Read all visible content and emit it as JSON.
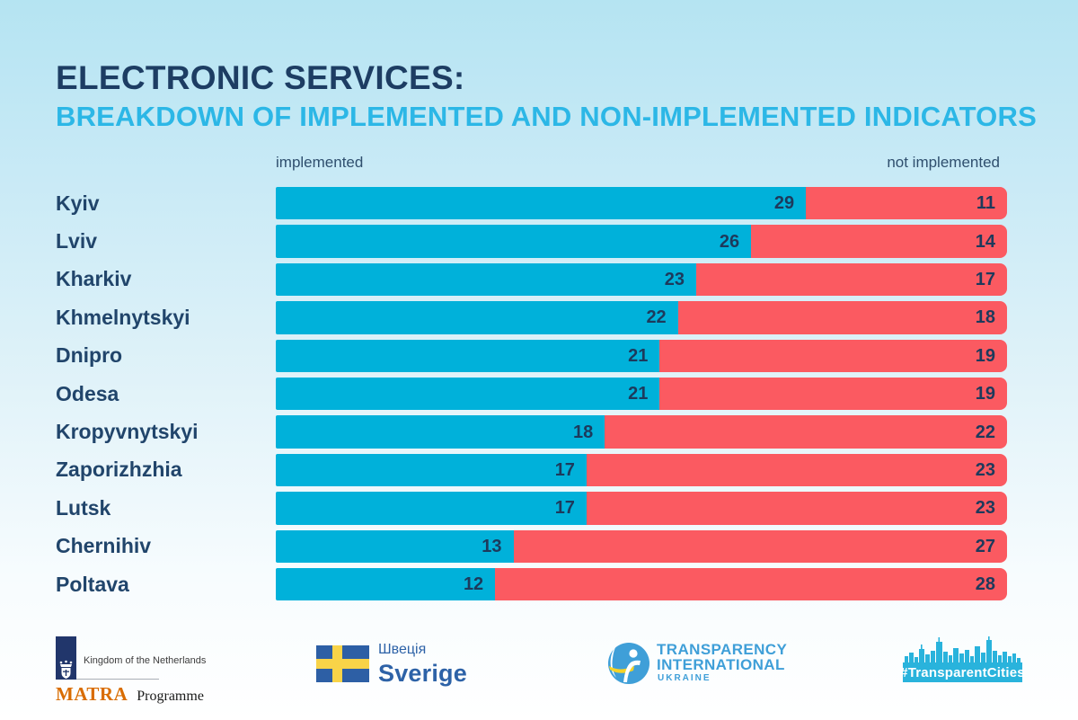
{
  "title": {
    "line1": "ELECTRONIC SERVICES:",
    "line2": "BREAKDOWN OF IMPLEMENTED AND NON-IMPLEMENTED INDICATORS"
  },
  "legend": {
    "left": "implemented",
    "right": "not implemented"
  },
  "chart_data": {
    "type": "bar",
    "orientation": "horizontal",
    "stacked": true,
    "title": "ELECTRONIC SERVICES: BREAKDOWN OF IMPLEMENTED AND NON-IMPLEMENTED INDICATORS",
    "categories": [
      "Kyiv",
      "Lviv",
      "Kharkiv",
      "Khmelnytskyi",
      "Dnipro",
      "Odesa",
      "Kropyvnytskyi",
      "Zaporizhzhia",
      "Lutsk",
      "Chernihiv",
      "Poltava"
    ],
    "series": [
      {
        "name": "implemented",
        "color": "#00b1da",
        "values": [
          29,
          26,
          23,
          22,
          21,
          21,
          18,
          17,
          17,
          13,
          12
        ]
      },
      {
        "name": "not implemented",
        "color": "#fb5a61",
        "values": [
          11,
          14,
          17,
          18,
          19,
          19,
          22,
          23,
          23,
          27,
          28
        ]
      }
    ],
    "total": 40,
    "xlim": [
      0,
      40
    ],
    "grid": false,
    "legend_position": "top"
  },
  "colors": {
    "title_navy": "#1d3d63",
    "subtitle_cyan": "#2cb7e6",
    "bar_implemented": "#00b1da",
    "bar_not_implemented": "#fb5a61",
    "value_text": "#1d3a5c",
    "background_top": "#b5e4f2",
    "background_bottom": "#ffffff"
  },
  "footer": {
    "matra": {
      "kingdom": "Kingdom of the Netherlands",
      "name": "MATRA",
      "programme": "Programme"
    },
    "sweden": {
      "uk": "Швеція",
      "sv": "Sverige"
    },
    "ti": {
      "line1": "TRANSPARENCY",
      "line2": "INTERNATIONAL",
      "line3": "UKRAINE"
    },
    "tc": {
      "tag": "#TransparentCities"
    }
  }
}
